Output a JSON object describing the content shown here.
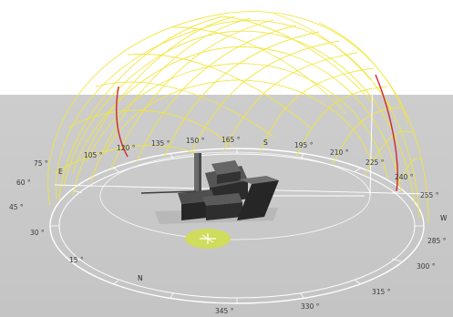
{
  "compass": {
    "directions": {
      "south": "S",
      "east": "E",
      "west": "W",
      "north": "N"
    },
    "degrees": {
      "d15": "15 °",
      "d30": "30 °",
      "d45": "45 °",
      "d60": "60 °",
      "d75": "75 °",
      "d105": "105 °",
      "d120": "120 °",
      "d135": "135 °",
      "d150": "150 °",
      "d165": "165 °",
      "d195": "195 °",
      "d210": "210 °",
      "d225": "225 °",
      "d240": "240 °",
      "d255": "255 °",
      "d285": "285 °",
      "d300": "300 °",
      "d315": "315 °",
      "d330": "330 °",
      "d345": "345 °"
    }
  },
  "colors": {
    "sun_path_grid": "#f2e63a",
    "seasonal_arc": "#d2282a",
    "ground": "#c9c9c9",
    "sky": "#ffffff",
    "helipad": "#cfdc5c",
    "buildings": "#3a3a3a"
  },
  "icons": {
    "helipad": "helipad-marker-icon"
  }
}
